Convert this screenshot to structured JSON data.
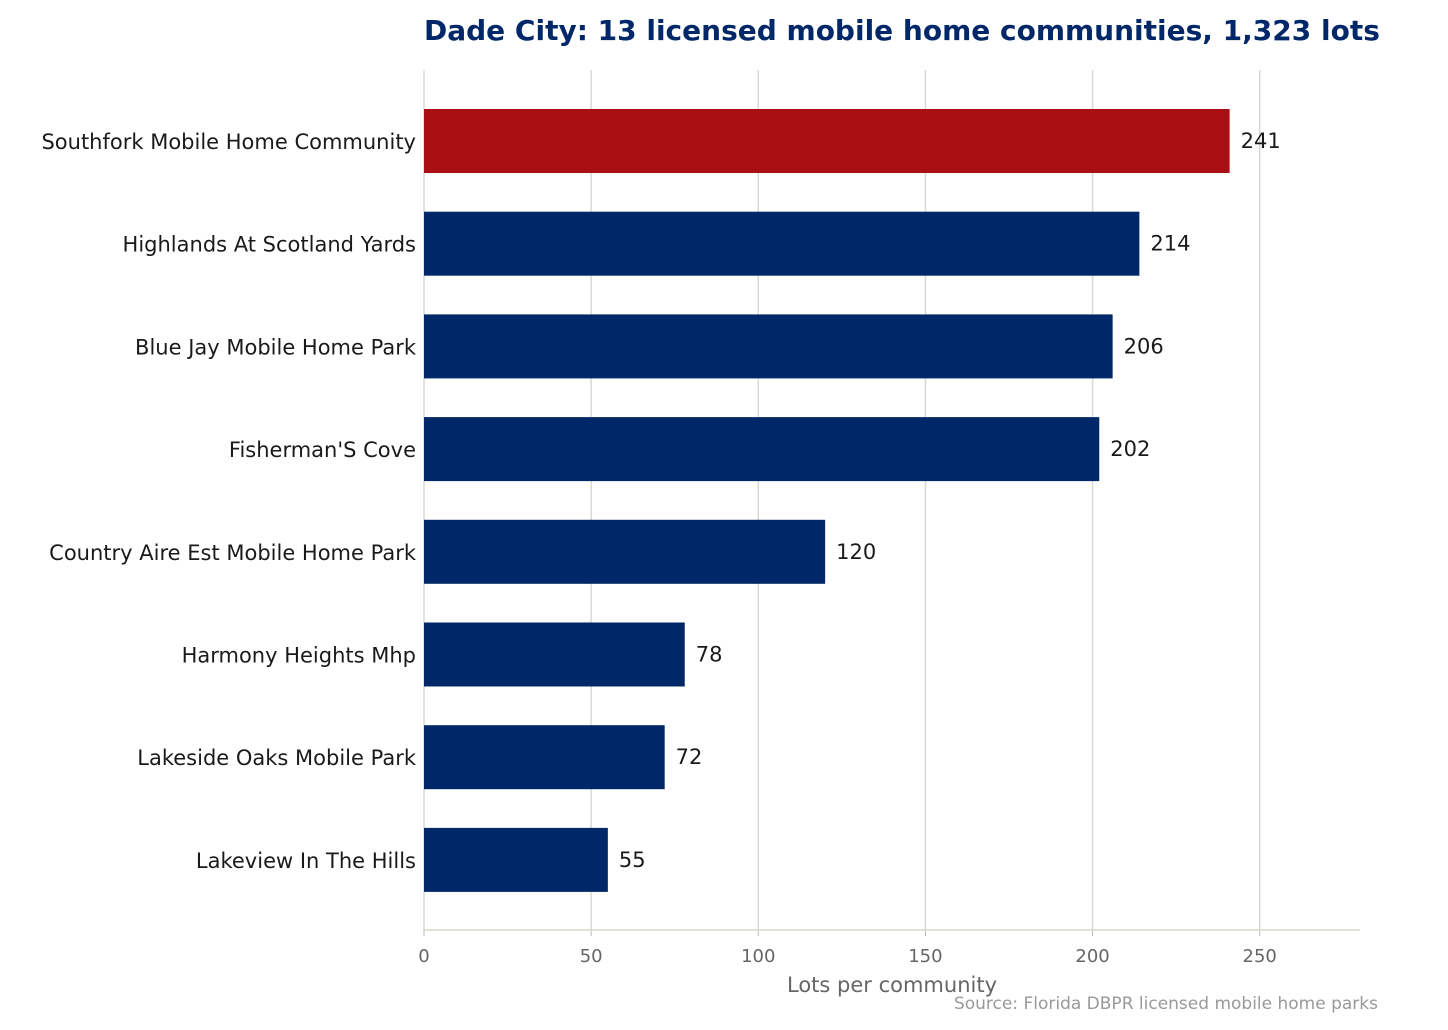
{
  "chart_data": {
    "type": "bar",
    "orientation": "horizontal",
    "title": "Dade City: 13 licensed mobile home communities, 1,323 lots",
    "xlabel": "Lots per community",
    "ylabel": "",
    "source": "Source: Florida DBPR licensed mobile home parks",
    "categories": [
      "Southfork Mobile Home Community",
      "Highlands At Scotland Yards",
      "Blue Jay Mobile Home Park",
      "Fisherman'S Cove",
      "Country Aire Est Mobile Home Park",
      "Harmony Heights Mhp",
      "Lakeside Oaks Mobile Park",
      "Lakeview In The Hills"
    ],
    "values": [
      241,
      214,
      206,
      202,
      120,
      78,
      72,
      55
    ],
    "highlight_index": 0,
    "xlim": [
      0,
      280
    ],
    "xticks": [
      0,
      50,
      100,
      150,
      200,
      250
    ],
    "grid": "vertical",
    "colors": {
      "bar": "#002868",
      "highlight": "#a81014",
      "grid": "#d8d8d4",
      "axis": "#d8d8cc",
      "title": "#002868"
    }
  }
}
